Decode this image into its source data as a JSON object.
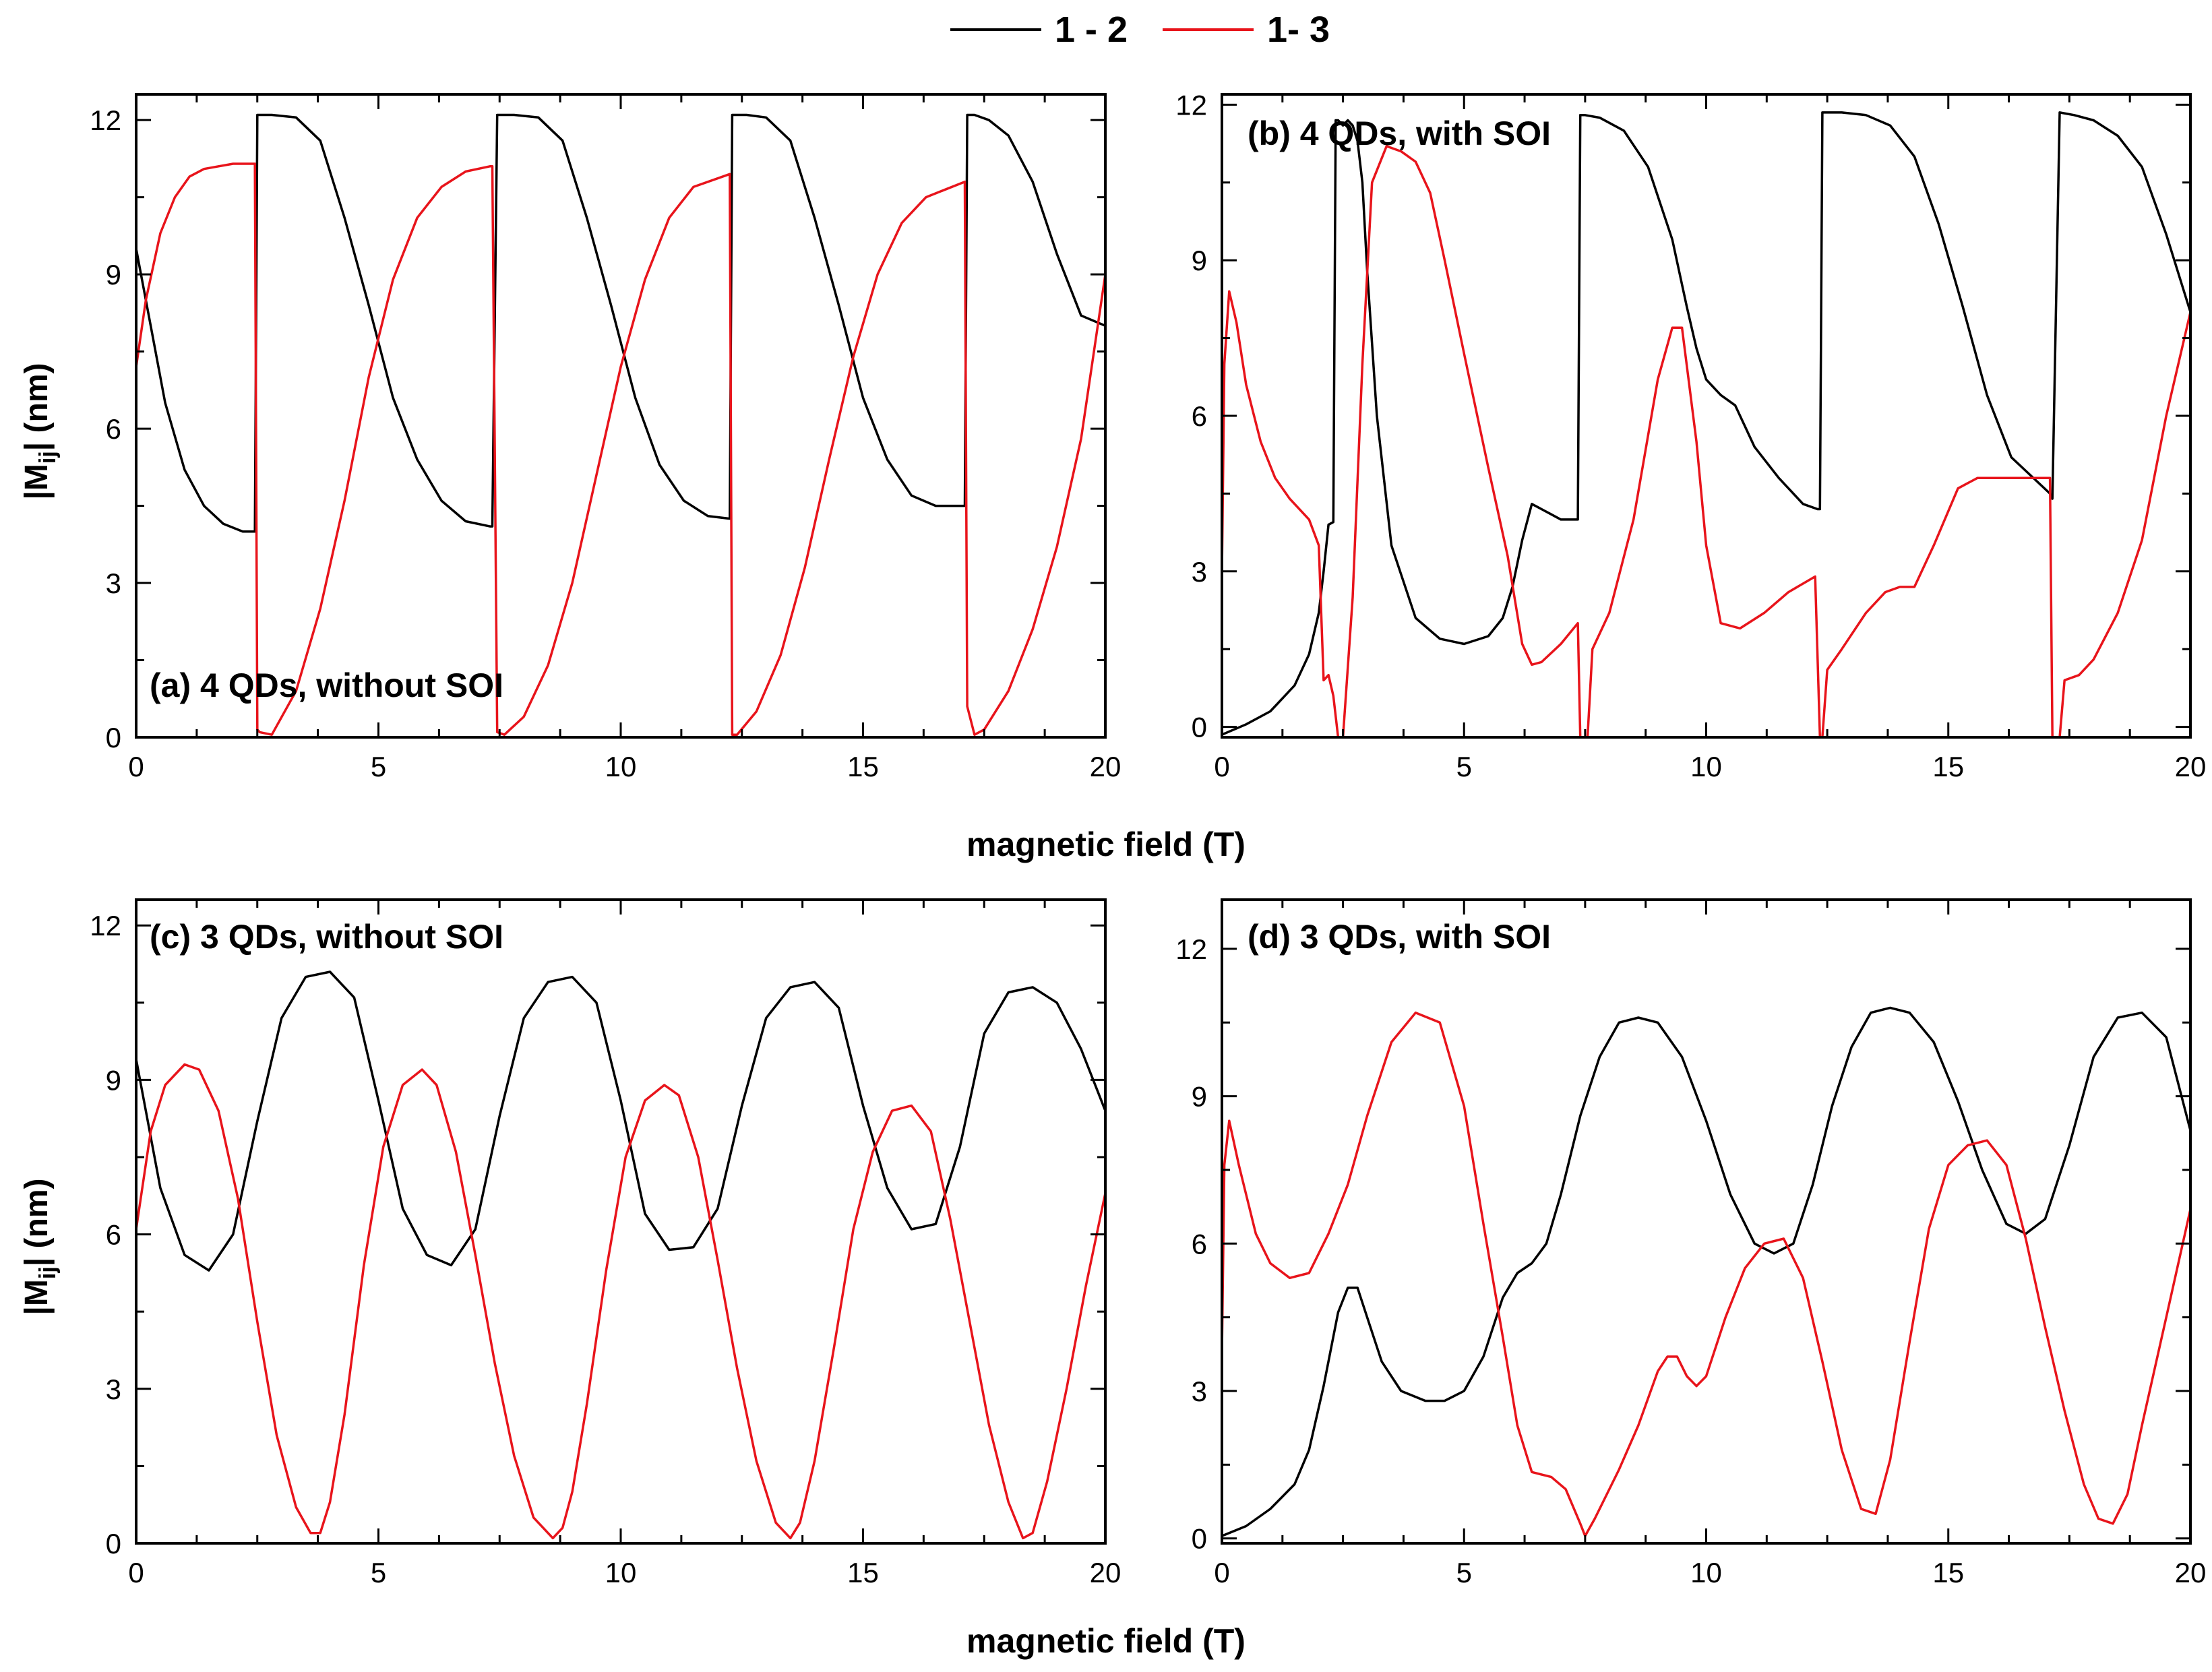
{
  "colors": {
    "series_1_2": "#000000",
    "series_1_3": "#e8141b"
  },
  "legend": [
    {
      "name": "1 - 2",
      "color": "#000000"
    },
    {
      "name": "1- 3",
      "color": "#e8141b"
    }
  ],
  "figure": {
    "xlabel": "magnetic field (T)",
    "ylabel_main": "|M",
    "ylabel_sub": "ij",
    "ylabel_unit": "| (nm)"
  },
  "chart_data": [
    {
      "id": "a",
      "type": "line",
      "title": "(a) 4 QDs, without SOI",
      "xlabel": "",
      "ylabel": "|Mij| (nm)",
      "xlim": [
        0,
        20
      ],
      "ylim": [
        0,
        12.5
      ],
      "xticks": [
        0,
        5,
        10,
        15,
        20
      ],
      "yticks": [
        0,
        3,
        6,
        9,
        12
      ],
      "series": [
        {
          "name": "1 - 2",
          "color": "#000000",
          "x": [
            0,
            0.3,
            0.6,
            1.0,
            1.4,
            1.8,
            2.2,
            2.45,
            2.5,
            2.55,
            2.8,
            3.3,
            3.8,
            4.3,
            4.8,
            5.3,
            5.8,
            6.3,
            6.8,
            7.3,
            7.35,
            7.45,
            7.5,
            7.8,
            8.3,
            8.8,
            9.3,
            9.8,
            10.3,
            10.8,
            11.3,
            11.8,
            12.25,
            12.3,
            12.35,
            12.6,
            13.0,
            13.5,
            14.0,
            14.5,
            15.0,
            15.5,
            16.0,
            16.5,
            17.1,
            17.15,
            17.25,
            17.3,
            17.6,
            18.0,
            18.5,
            19.0,
            19.5,
            20.0
          ],
          "y": [
            9.5,
            8.0,
            6.5,
            5.2,
            4.5,
            4.15,
            4.0,
            4.0,
            12.1,
            12.1,
            12.1,
            12.05,
            11.6,
            10.1,
            8.4,
            6.6,
            5.4,
            4.6,
            4.2,
            4.1,
            4.1,
            12.1,
            12.1,
            12.1,
            12.05,
            11.6,
            10.1,
            8.4,
            6.6,
            5.3,
            4.6,
            4.3,
            4.25,
            12.1,
            12.1,
            12.1,
            12.05,
            11.6,
            10.1,
            8.4,
            6.6,
            5.4,
            4.7,
            4.5,
            4.5,
            12.1,
            12.1,
            12.1,
            12.0,
            11.7,
            10.8,
            9.4,
            8.2,
            8.0
          ]
        },
        {
          "name": "1 - 3",
          "color": "#e8141b",
          "x": [
            0,
            0.2,
            0.5,
            0.8,
            1.1,
            1.4,
            1.7,
            2.0,
            2.45,
            2.5,
            2.55,
            2.8,
            3.3,
            3.8,
            4.3,
            4.8,
            5.3,
            5.8,
            6.3,
            6.8,
            7.3,
            7.35,
            7.45,
            7.6,
            8.0,
            8.5,
            9.0,
            9.5,
            10.0,
            10.5,
            11.0,
            11.5,
            12.25,
            12.3,
            12.4,
            12.8,
            13.3,
            13.8,
            14.3,
            14.8,
            15.3,
            15.8,
            16.3,
            17.1,
            17.15,
            17.3,
            17.5,
            18.0,
            18.5,
            19.0,
            19.5,
            20.0
          ],
          "y": [
            7.2,
            8.5,
            9.8,
            10.5,
            10.9,
            11.05,
            11.1,
            11.15,
            11.15,
            0.15,
            0.1,
            0.05,
            0.9,
            2.5,
            4.6,
            7.0,
            8.9,
            10.1,
            10.7,
            11.0,
            11.1,
            11.1,
            0.1,
            0.05,
            0.4,
            1.4,
            3.0,
            5.1,
            7.2,
            8.9,
            10.1,
            10.7,
            10.95,
            0.05,
            0.05,
            0.5,
            1.6,
            3.3,
            5.4,
            7.4,
            9.0,
            10.0,
            10.5,
            10.8,
            0.6,
            0.05,
            0.15,
            0.9,
            2.1,
            3.7,
            5.8,
            9.0
          ]
        }
      ]
    },
    {
      "id": "b",
      "type": "line",
      "title": "(b) 4 QDs, with SOI",
      "xlabel": "",
      "ylabel": "|Mij| (nm)",
      "xlim": [
        0,
        20
      ],
      "ylim": [
        -0.2,
        12.2
      ],
      "xticks": [
        0,
        5,
        10,
        15,
        20
      ],
      "yticks": [
        0,
        3,
        6,
        9,
        12
      ],
      "series": [
        {
          "name": "1 - 2",
          "color": "#000000",
          "x": [
            0,
            0.5,
            1.0,
            1.5,
            1.8,
            2.0,
            2.1,
            2.2,
            2.3,
            2.35,
            2.4,
            2.5,
            2.6,
            2.7,
            2.8,
            2.9,
            3.0,
            3.2,
            3.5,
            4.0,
            4.5,
            5.0,
            5.5,
            5.8,
            6.0,
            6.2,
            6.4,
            6.6,
            6.8,
            7.0,
            7.35,
            7.4,
            7.5,
            7.8,
            8.3,
            8.8,
            9.3,
            9.6,
            9.8,
            10.0,
            10.3,
            10.6,
            11.0,
            11.5,
            12.0,
            12.3,
            12.35,
            12.4,
            12.8,
            13.3,
            13.8,
            14.3,
            14.8,
            15.3,
            15.8,
            16.3,
            17.1,
            17.15,
            17.3,
            17.6,
            18.0,
            18.5,
            19.0,
            19.5,
            20.0
          ],
          "y": [
            -0.15,
            0.05,
            0.3,
            0.8,
            1.4,
            2.2,
            3.0,
            3.9,
            3.95,
            11.7,
            11.7,
            11.6,
            11.7,
            11.6,
            11.3,
            10.5,
            8.8,
            6.0,
            3.5,
            2.1,
            1.7,
            1.6,
            1.75,
            2.1,
            2.7,
            3.6,
            4.3,
            4.2,
            4.1,
            4.0,
            4.0,
            11.8,
            11.8,
            11.75,
            11.5,
            10.8,
            9.4,
            8.1,
            7.3,
            6.7,
            6.4,
            6.2,
            5.4,
            4.8,
            4.3,
            4.2,
            4.2,
            11.85,
            11.85,
            11.8,
            11.6,
            11.0,
            9.7,
            8.1,
            6.4,
            5.2,
            4.5,
            4.4,
            11.85,
            11.8,
            11.7,
            11.4,
            10.8,
            9.5,
            8.0
          ]
        },
        {
          "name": "1 - 3",
          "color": "#e8141b",
          "x": [
            0,
            0.05,
            0.15,
            0.3,
            0.5,
            0.8,
            1.1,
            1.4,
            1.8,
            2.0,
            2.1,
            2.2,
            2.3,
            2.4,
            2.5,
            2.7,
            2.9,
            3.1,
            3.4,
            3.7,
            4.0,
            4.3,
            4.6,
            5.0,
            5.5,
            5.9,
            6.2,
            6.4,
            6.6,
            7.0,
            7.35,
            7.4,
            7.45,
            7.55,
            7.65,
            8.0,
            8.5,
            9.0,
            9.3,
            9.5,
            9.8,
            10.0,
            10.3,
            10.7,
            11.2,
            11.7,
            12.25,
            12.35,
            12.4,
            12.5,
            12.8,
            13.3,
            13.7,
            14.0,
            14.3,
            14.7,
            15.2,
            15.6,
            16.0,
            16.5,
            17.1,
            17.15,
            17.3,
            17.4,
            17.7,
            18.0,
            18.5,
            19.0,
            19.5,
            20.0
          ],
          "y": [
            3.0,
            7.0,
            8.4,
            7.8,
            6.6,
            5.5,
            4.8,
            4.4,
            4.0,
            3.5,
            0.9,
            1.0,
            0.6,
            -0.2,
            -0.2,
            2.5,
            7.0,
            10.5,
            11.2,
            11.1,
            10.9,
            10.3,
            9.0,
            7.2,
            5.0,
            3.3,
            1.6,
            1.2,
            1.25,
            1.6,
            2.0,
            -0.2,
            -0.2,
            -0.2,
            1.5,
            2.2,
            4.0,
            6.7,
            7.7,
            7.7,
            5.5,
            3.5,
            2.0,
            1.9,
            2.2,
            2.6,
            2.9,
            -0.2,
            -0.2,
            1.1,
            1.5,
            2.2,
            2.6,
            2.7,
            2.7,
            3.5,
            4.6,
            4.8,
            4.8,
            4.8,
            4.8,
            -0.2,
            -0.2,
            0.9,
            1.0,
            1.3,
            2.2,
            3.6,
            6.0,
            8.0
          ]
        }
      ]
    },
    {
      "id": "c",
      "type": "line",
      "title": "(c) 3 QDs, without SOI",
      "xlabel": "magnetic field (T)",
      "ylabel": "|Mij| (nm)",
      "xlim": [
        0,
        20
      ],
      "ylim": [
        0,
        12.5
      ],
      "xticks": [
        0,
        5,
        10,
        15,
        20
      ],
      "yticks": [
        0,
        3,
        6,
        9,
        12
      ],
      "series": [
        {
          "name": "1 - 2",
          "color": "#000000",
          "x": [
            0,
            0.5,
            1.0,
            1.5,
            2.0,
            2.5,
            3.0,
            3.5,
            4.0,
            4.5,
            5.0,
            5.5,
            6.0,
            6.5,
            7.0,
            7.5,
            8.0,
            8.5,
            9.0,
            9.5,
            10.0,
            10.5,
            11.0,
            11.5,
            12.0,
            12.5,
            13.0,
            13.5,
            14.0,
            14.5,
            15.0,
            15.5,
            16.0,
            16.5,
            17.0,
            17.5,
            18.0,
            18.5,
            19.0,
            19.5,
            20.0
          ],
          "y": [
            9.4,
            6.9,
            5.6,
            5.3,
            6.0,
            8.2,
            10.2,
            11.0,
            11.1,
            10.6,
            8.6,
            6.5,
            5.6,
            5.4,
            6.1,
            8.3,
            10.2,
            10.9,
            11.0,
            10.5,
            8.6,
            6.4,
            5.7,
            5.75,
            6.5,
            8.5,
            10.2,
            10.8,
            10.9,
            10.4,
            8.5,
            6.9,
            6.1,
            6.2,
            7.7,
            9.9,
            10.7,
            10.8,
            10.5,
            9.6,
            8.4
          ]
        },
        {
          "name": "1 - 3",
          "color": "#e8141b",
          "x": [
            0,
            0.3,
            0.6,
            1.0,
            1.3,
            1.7,
            2.1,
            2.5,
            2.9,
            3.3,
            3.6,
            3.8,
            4.0,
            4.3,
            4.7,
            5.1,
            5.5,
            5.9,
            6.2,
            6.6,
            7.0,
            7.4,
            7.8,
            8.2,
            8.6,
            8.8,
            9.0,
            9.3,
            9.7,
            10.1,
            10.5,
            10.9,
            11.2,
            11.6,
            12.0,
            12.4,
            12.8,
            13.2,
            13.5,
            13.7,
            14.0,
            14.4,
            14.8,
            15.2,
            15.6,
            16.0,
            16.4,
            16.8,
            17.2,
            17.6,
            18.0,
            18.3,
            18.5,
            18.8,
            19.2,
            19.6,
            20.0
          ],
          "y": [
            6.1,
            8.0,
            8.9,
            9.3,
            9.2,
            8.4,
            6.7,
            4.3,
            2.1,
            0.7,
            0.2,
            0.2,
            0.8,
            2.5,
            5.4,
            7.7,
            8.9,
            9.2,
            8.9,
            7.6,
            5.6,
            3.5,
            1.7,
            0.5,
            0.1,
            0.3,
            1.0,
            2.7,
            5.3,
            7.5,
            8.6,
            8.9,
            8.7,
            7.5,
            5.5,
            3.4,
            1.6,
            0.4,
            0.1,
            0.4,
            1.6,
            3.8,
            6.1,
            7.6,
            8.4,
            8.5,
            8.0,
            6.3,
            4.3,
            2.3,
            0.8,
            0.1,
            0.2,
            1.2,
            3.0,
            5.0,
            6.8
          ]
        }
      ]
    },
    {
      "id": "d",
      "type": "line",
      "title": "(d) 3 QDs, with SOI",
      "xlabel": "magnetic field (T)",
      "ylabel": "|Mij| (nm)",
      "xlim": [
        0,
        20
      ],
      "ylim": [
        -0.1,
        13
      ],
      "xticks": [
        0,
        5,
        10,
        15,
        20
      ],
      "yticks": [
        0,
        3,
        6,
        9,
        12
      ],
      "series": [
        {
          "name": "1 - 2",
          "color": "#000000",
          "x": [
            0,
            0.5,
            1.0,
            1.5,
            1.8,
            2.1,
            2.4,
            2.6,
            2.8,
            3.0,
            3.3,
            3.7,
            4.2,
            4.6,
            5.0,
            5.4,
            5.8,
            6.1,
            6.4,
            6.7,
            7.0,
            7.4,
            7.8,
            8.2,
            8.6,
            9.0,
            9.5,
            10.0,
            10.5,
            11.0,
            11.4,
            11.8,
            12.2,
            12.6,
            13.0,
            13.4,
            13.8,
            14.2,
            14.7,
            15.2,
            15.7,
            16.2,
            16.6,
            17.0,
            17.5,
            18.0,
            18.5,
            19.0,
            19.5,
            20.0
          ],
          "y": [
            0.05,
            0.25,
            0.6,
            1.1,
            1.8,
            3.1,
            4.6,
            5.1,
            5.1,
            4.5,
            3.6,
            3.0,
            2.8,
            2.8,
            3.0,
            3.7,
            4.9,
            5.4,
            5.6,
            6.0,
            7.0,
            8.6,
            9.8,
            10.5,
            10.6,
            10.5,
            9.8,
            8.5,
            7.0,
            6.0,
            5.8,
            6.0,
            7.2,
            8.8,
            10.0,
            10.7,
            10.8,
            10.7,
            10.1,
            8.9,
            7.5,
            6.4,
            6.2,
            6.5,
            8.0,
            9.8,
            10.6,
            10.7,
            10.2,
            8.3
          ]
        },
        {
          "name": "1 - 3",
          "color": "#e8141b",
          "x": [
            0,
            0.05,
            0.15,
            0.35,
            0.7,
            1.0,
            1.4,
            1.8,
            2.2,
            2.6,
            3.0,
            3.5,
            4.0,
            4.5,
            5.0,
            5.4,
            5.8,
            6.1,
            6.4,
            6.8,
            7.1,
            7.4,
            7.5,
            7.7,
            8.2,
            8.6,
            9.0,
            9.2,
            9.4,
            9.6,
            9.8,
            10.0,
            10.4,
            10.8,
            11.2,
            11.6,
            12.0,
            12.4,
            12.8,
            13.2,
            13.5,
            13.8,
            14.2,
            14.6,
            15.0,
            15.4,
            15.8,
            16.2,
            16.6,
            17.0,
            17.4,
            17.8,
            18.1,
            18.4,
            18.7,
            19.0,
            19.5,
            20.0
          ],
          "y": [
            3.8,
            7.6,
            8.5,
            7.6,
            6.2,
            5.6,
            5.3,
            5.4,
            6.2,
            7.2,
            8.6,
            10.1,
            10.7,
            10.5,
            8.8,
            6.4,
            4.1,
            2.3,
            1.35,
            1.25,
            1.0,
            0.3,
            0.05,
            0.4,
            1.4,
            2.3,
            3.4,
            3.7,
            3.7,
            3.3,
            3.1,
            3.3,
            4.5,
            5.5,
            6.0,
            6.1,
            5.3,
            3.6,
            1.8,
            0.6,
            0.5,
            1.6,
            4.0,
            6.3,
            7.6,
            8.0,
            8.1,
            7.6,
            6.1,
            4.3,
            2.6,
            1.1,
            0.4,
            0.3,
            0.9,
            2.3,
            4.5,
            6.7
          ]
        }
      ]
    }
  ]
}
